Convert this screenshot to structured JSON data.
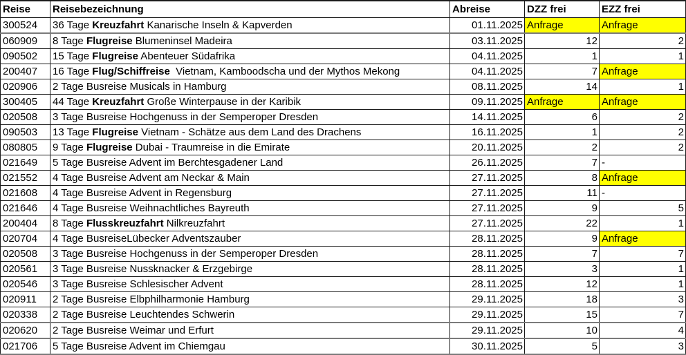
{
  "table": {
    "headers": {
      "reise": "Reise",
      "bezeichnung": "Reisebezeichnung",
      "abreise": "Abreise",
      "dzz": "DZZ frei",
      "ezz": "EZZ frei"
    },
    "colors": {
      "anfrage_highlight": "#ffff00",
      "grid": "#1a1a1a"
    },
    "rows": [
      {
        "reise": "300524",
        "pre": "36 Tage ",
        "bold": "Kreuzfahrt",
        "post": " Kanarische Inseln & Kapverden",
        "abreise": "01.11.2025",
        "dzz": "Anfrage",
        "ezz": "Anfrage"
      },
      {
        "reise": "060909",
        "pre": "8 Tage ",
        "bold": "Flugreise",
        "post": " Blumeninsel Madeira",
        "abreise": "03.11.2025",
        "dzz": "12",
        "ezz": "2"
      },
      {
        "reise": "090502",
        "pre": "15 Tage ",
        "bold": "Flugreise",
        "post": " Abenteuer Südafrika",
        "abreise": "04.11.2025",
        "dzz": "1",
        "ezz": "1"
      },
      {
        "reise": "200407",
        "pre": "16 Tage ",
        "bold": "Flug/Schiffreise",
        "post": "  Vietnam, Kamboodscha und der Mythos Mekong",
        "abreise": "04.11.2025",
        "dzz": "7",
        "ezz": "Anfrage"
      },
      {
        "reise": "020906",
        "pre": "2 Tage Busreise Musicals in Hamburg",
        "bold": "",
        "post": "",
        "abreise": "08.11.2025",
        "dzz": "14",
        "ezz": "1"
      },
      {
        "reise": "300405",
        "pre": "44 Tage ",
        "bold": "Kreuzfahrt",
        "post": " Große Winterpause in der Karibik",
        "abreise": "09.11.2025",
        "dzz": "Anfrage",
        "ezz": "Anfrage"
      },
      {
        "reise": "020508",
        "pre": "3 Tage Busreise Hochgenuss in der Semperoper Dresden",
        "bold": "",
        "post": "",
        "abreise": "14.11.2025",
        "dzz": "6",
        "ezz": "2"
      },
      {
        "reise": "090503",
        "pre": "13 Tage ",
        "bold": "Flugreise",
        "post": " Vietnam - Schätze aus dem Land des Drachens",
        "abreise": "16.11.2025",
        "dzz": "1",
        "ezz": "2"
      },
      {
        "reise": "080805",
        "pre": "9 Tage ",
        "bold": "Flugreise",
        "post": " Dubai - Traumreise in die Emirate",
        "abreise": "20.11.2025",
        "dzz": "2",
        "ezz": "2"
      },
      {
        "reise": "021649",
        "pre": "5 Tage Busreise Advent im Berchtesgadener Land",
        "bold": "",
        "post": "",
        "abreise": "26.11.2025",
        "dzz": "7",
        "ezz": "-"
      },
      {
        "reise": "021552",
        "pre": "4 Tage Busreise Advent am Neckar & Main",
        "bold": "",
        "post": "",
        "abreise": "27.11.2025",
        "dzz": "8",
        "ezz": "Anfrage"
      },
      {
        "reise": "021608",
        "pre": "4 Tage Busreise Advent in Regensburg",
        "bold": "",
        "post": "",
        "abreise": "27.11.2025",
        "dzz": "11",
        "ezz": "-"
      },
      {
        "reise": "021646",
        "pre": "4 Tage Busreise Weihnachtliches Bayreuth",
        "bold": "",
        "post": "",
        "abreise": "27.11.2025",
        "dzz": "9",
        "ezz": "5"
      },
      {
        "reise": "200404",
        "pre": "8 Tage ",
        "bold": "Flusskreuzfahrt",
        "post": " Nilkreuzfahrt",
        "abreise": "27.11.2025",
        "dzz": "22",
        "ezz": "1"
      },
      {
        "reise": "020704",
        "pre": "4 Tage BusreiseLübecker Adventszauber",
        "bold": "",
        "post": "",
        "abreise": "28.11.2025",
        "dzz": "9",
        "ezz": "Anfrage"
      },
      {
        "reise": "020508",
        "pre": "3 Tage Busreise Hochgenuss in der Semperoper Dresden",
        "bold": "",
        "post": "",
        "abreise": "28.11.2025",
        "dzz": "7",
        "ezz": "7"
      },
      {
        "reise": "020561",
        "pre": "3 Tage Busreise Nussknacker & Erzgebirge",
        "bold": "",
        "post": "",
        "abreise": "28.11.2025",
        "dzz": "3",
        "ezz": "1"
      },
      {
        "reise": "020546",
        "pre": "3 Tage Busreise Schlesischer Advent",
        "bold": "",
        "post": "",
        "abreise": "28.11.2025",
        "dzz": "12",
        "ezz": "1"
      },
      {
        "reise": "020911",
        "pre": "2 Tage Busreise Elbphilharmonie Hamburg",
        "bold": "",
        "post": "",
        "abreise": "29.11.2025",
        "dzz": "18",
        "ezz": "3"
      },
      {
        "reise": "020338",
        "pre": "2 Tage Busreise Leuchtendes Schwerin",
        "bold": "",
        "post": "",
        "abreise": "29.11.2025",
        "dzz": "15",
        "ezz": "7"
      },
      {
        "reise": "020620",
        "pre": "2 Tage Busreise Weimar und Erfurt",
        "bold": "",
        "post": "",
        "abreise": "29.11.2025",
        "dzz": "10",
        "ezz": "4"
      },
      {
        "reise": "021706",
        "pre": "5 Tage Busreise Advent im Chiemgau",
        "bold": "",
        "post": "",
        "abreise": "30.11.2025",
        "dzz": "5",
        "ezz": "3"
      }
    ]
  }
}
